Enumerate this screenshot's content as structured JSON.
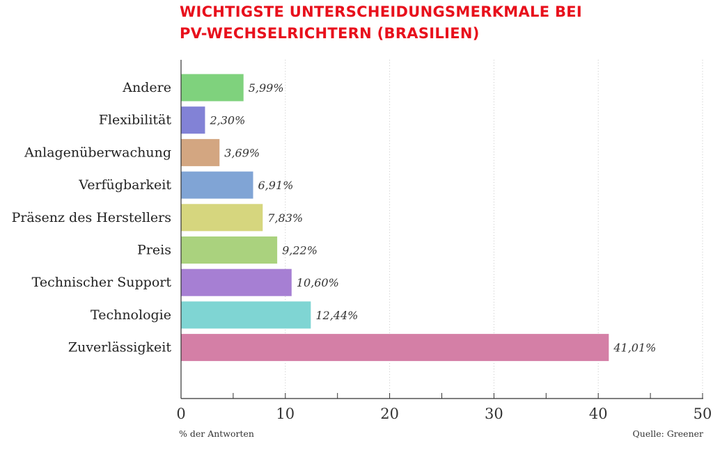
{
  "header": {
    "title_line1": "WICHTIGSTE UNTERSCHEIDUNGSMERKMALE BEI",
    "title_line2": "PV-WECHSELRICHTERN (BRASILIEN)"
  },
  "footer": {
    "xlabel": "% der Antworten",
    "source": "Quelle: Greener"
  },
  "chart_data": {
    "type": "bar",
    "orientation": "horizontal",
    "title": "WICHTIGSTE UNTERSCHEIDUNGSMERKMALE BEI PV-WECHSELRICHTERN (BRASILIEN)",
    "xlabel": "% der Antworten",
    "xlim": [
      0,
      50
    ],
    "xticks": [
      0,
      10,
      20,
      30,
      40,
      50
    ],
    "grid": "vertical dotted",
    "categories": [
      "Andere",
      "Flexibilität",
      "Anlagenüberwachung",
      "Verfügbarkeit",
      "Präsenz des Herstellers",
      "Preis",
      "Technischer Support",
      "Technologie",
      "Zuverlässigkeit"
    ],
    "values": [
      5.99,
      2.3,
      3.69,
      6.91,
      7.83,
      9.22,
      10.6,
      12.44,
      41.01
    ],
    "value_labels": [
      "5,99%",
      "2,30%",
      "3,69%",
      "6,91%",
      "7,83%",
      "9,22%",
      "10,60%",
      "12,44%",
      "41,01%"
    ],
    "colors": [
      "#7fd27d",
      "#8282d6",
      "#d3a681",
      "#80a4d5",
      "#d6d67e",
      "#aad27e",
      "#a67fd3",
      "#7fd5d3",
      "#d47fa6"
    ]
  }
}
